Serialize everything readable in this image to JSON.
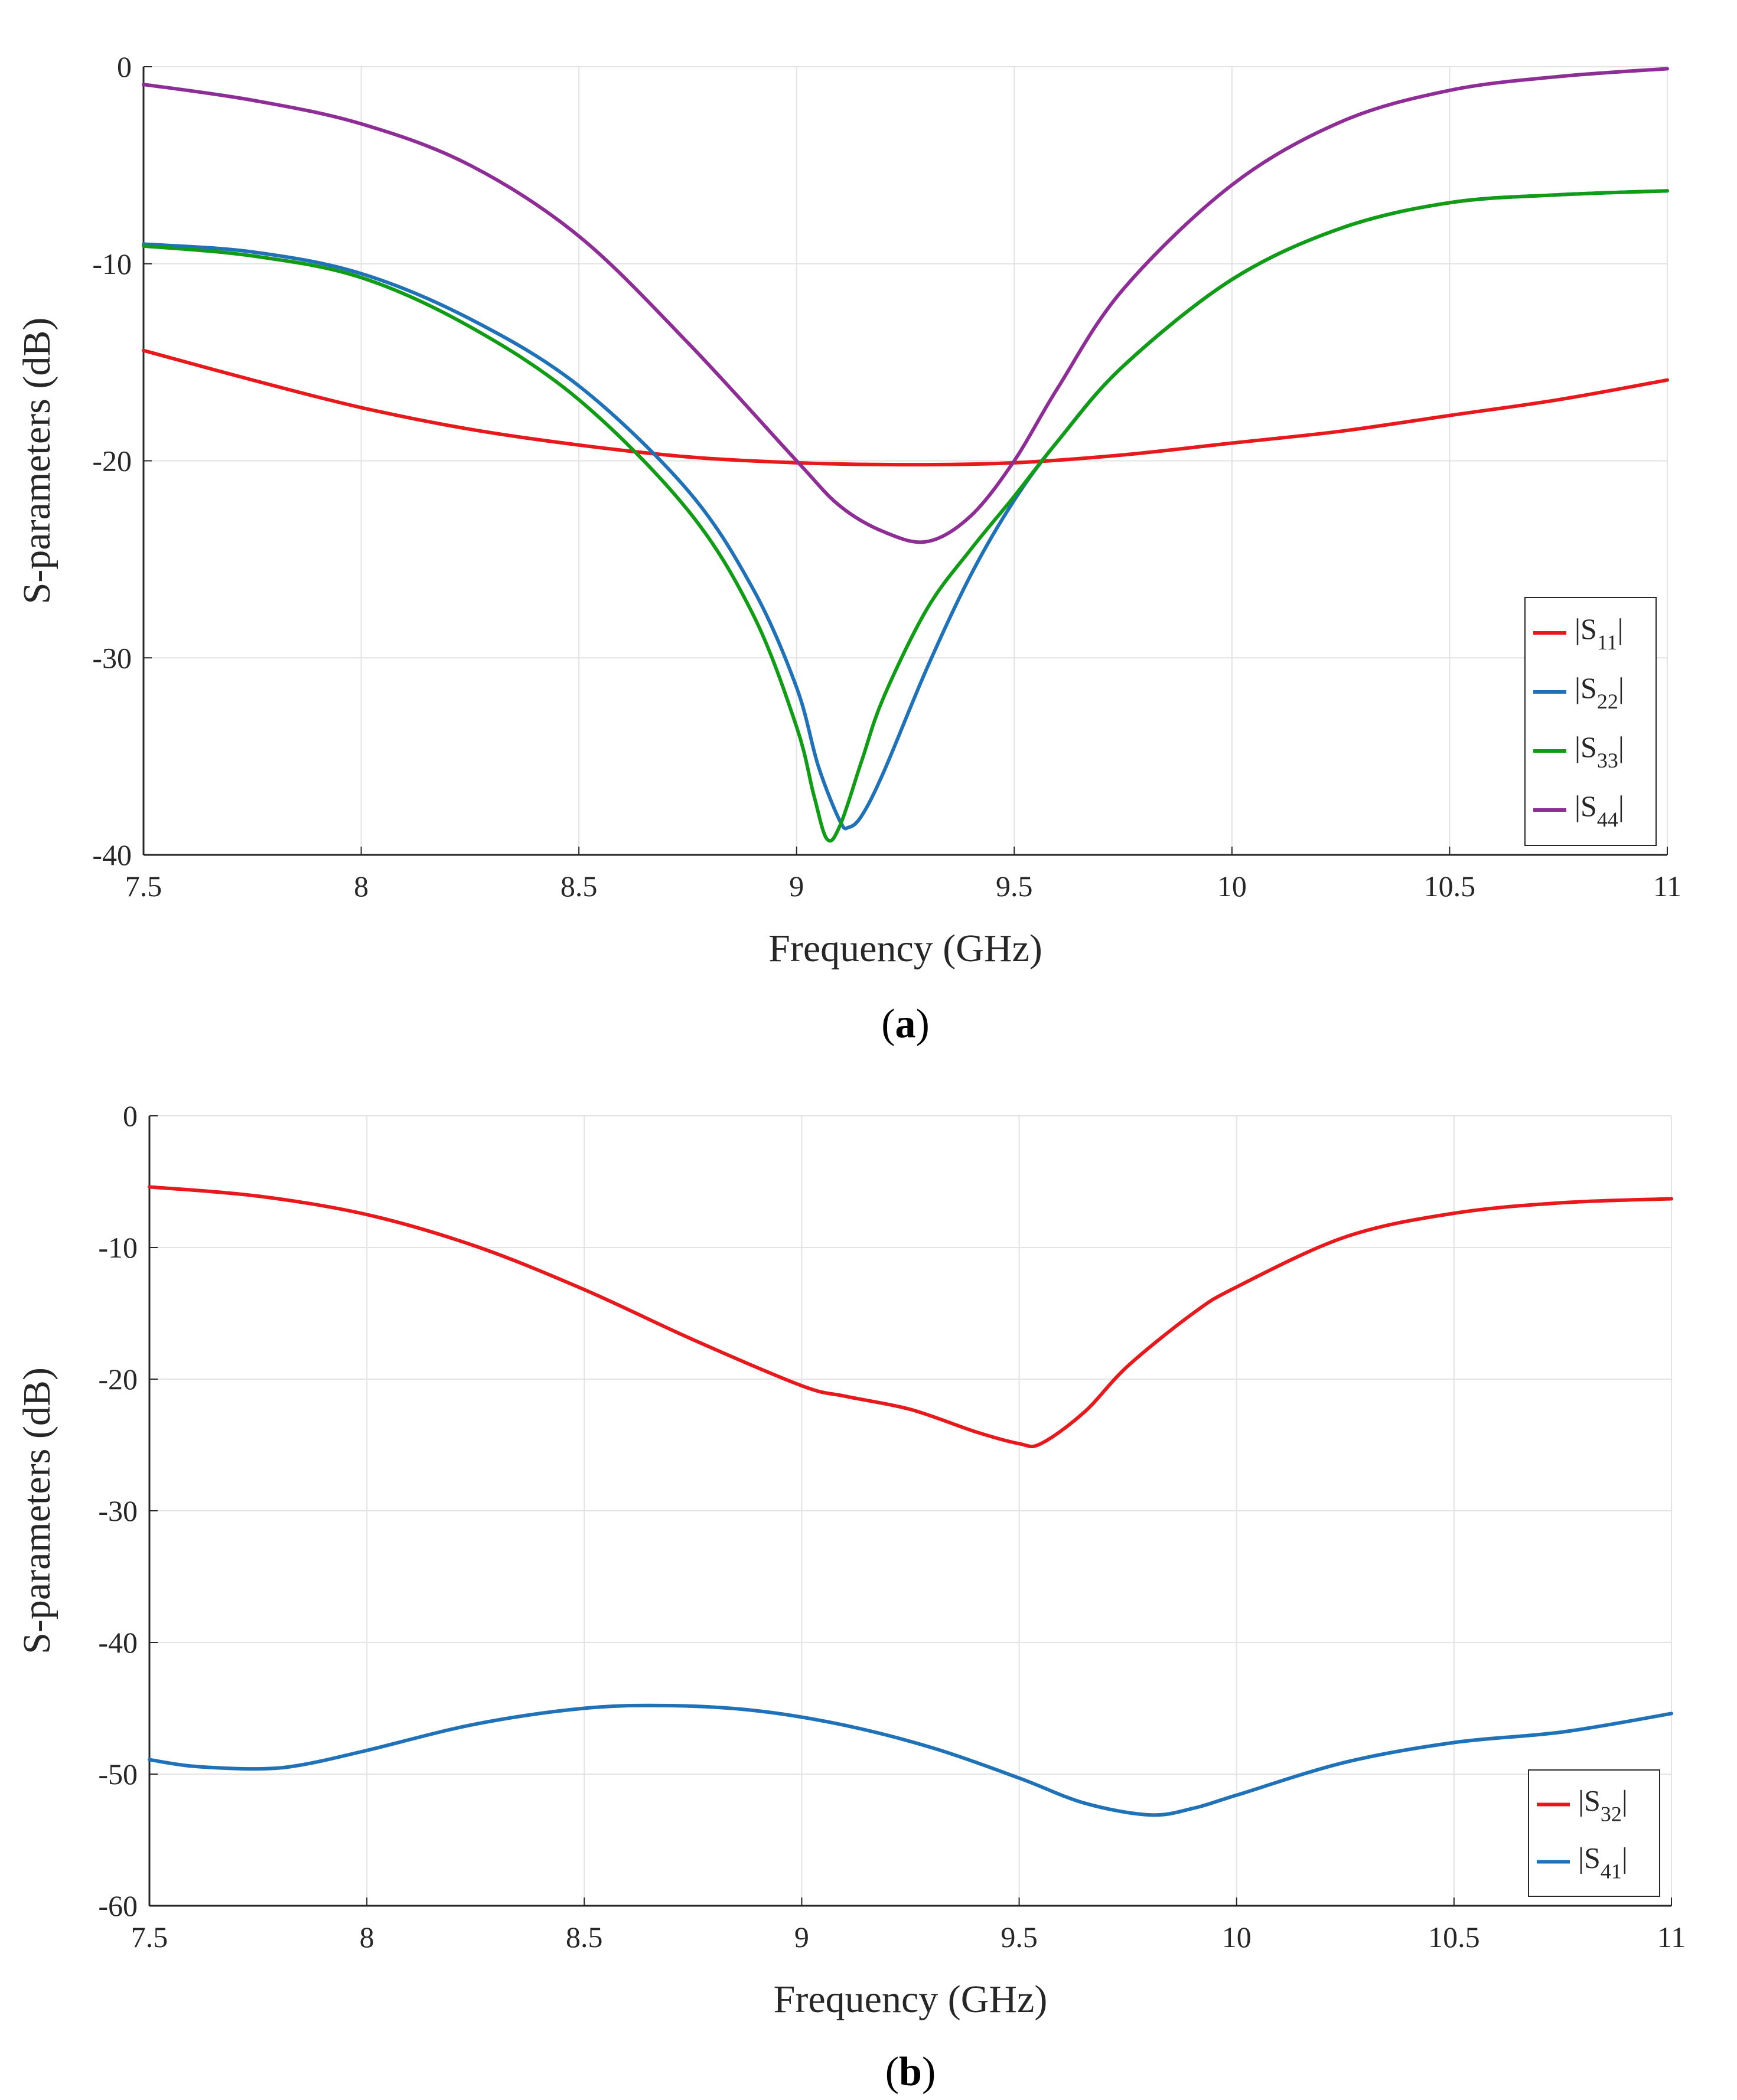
{
  "chart_data": [
    {
      "type": "line",
      "panel_label": "a",
      "title": "",
      "xlabel": "Frequency (GHz)",
      "ylabel": "S-parameters (dB)",
      "xlim": [
        7.5,
        11
      ],
      "ylim": [
        -40,
        0
      ],
      "xticks": [
        7.5,
        8,
        8.5,
        9,
        9.5,
        10,
        10.5,
        11
      ],
      "yticks": [
        0,
        -10,
        -20,
        -30,
        -40
      ],
      "xtick_labels": [
        "7.5",
        "8",
        "8.5",
        "9",
        "9.5",
        "10",
        "10.5",
        "11"
      ],
      "ytick_labels": [
        "0",
        "-10",
        "-20",
        "-30",
        "-40"
      ],
      "grid": true,
      "legend_position": "bottom-right",
      "series": [
        {
          "name": "|S11|",
          "base": "|S",
          "sub": "11",
          "close": "|",
          "color": "#e8191d",
          "x": [
            7.5,
            7.75,
            8.0,
            8.25,
            8.5,
            8.75,
            9.0,
            9.25,
            9.5,
            9.75,
            10.0,
            10.25,
            10.5,
            10.75,
            11.0
          ],
          "y": [
            -14.4,
            -15.9,
            -17.3,
            -18.4,
            -19.2,
            -19.8,
            -20.1,
            -20.2,
            -20.1,
            -19.7,
            -19.1,
            -18.5,
            -17.7,
            -16.9,
            -15.9
          ]
        },
        {
          "name": "|S22|",
          "base": "|S",
          "sub": "22",
          "close": "|",
          "color": "#1f72b8",
          "x": [
            7.5,
            7.75,
            8.0,
            8.25,
            8.5,
            8.75,
            8.9,
            9.0,
            9.05,
            9.1,
            9.12,
            9.15,
            9.2,
            9.3,
            9.4,
            9.5,
            9.6,
            9.75,
            10.0,
            10.25,
            10.5,
            10.75,
            11.0
          ],
          "y": [
            -9.0,
            -9.4,
            -10.5,
            -12.8,
            -16.2,
            -21.5,
            -26.5,
            -31.5,
            -35.5,
            -38.3,
            -38.6,
            -38.0,
            -35.8,
            -30.5,
            -25.8,
            -22.0,
            -19.0,
            -15.2,
            -10.8,
            -8.2,
            -6.9,
            -6.5,
            -6.3
          ]
        },
        {
          "name": "|S33|",
          "base": "|S",
          "sub": "33",
          "close": "|",
          "color": "#119c16",
          "x": [
            7.5,
            7.75,
            8.0,
            8.25,
            8.5,
            8.75,
            8.9,
            9.0,
            9.04,
            9.07,
            9.1,
            9.15,
            9.2,
            9.3,
            9.4,
            9.5,
            9.6,
            9.75,
            10.0,
            10.25,
            10.5,
            10.75,
            11.0
          ],
          "y": [
            -9.1,
            -9.6,
            -10.7,
            -13.2,
            -16.9,
            -22.5,
            -27.8,
            -33.5,
            -37.0,
            -39.2,
            -38.5,
            -35.2,
            -32.0,
            -27.5,
            -24.5,
            -21.8,
            -19.0,
            -15.2,
            -10.8,
            -8.2,
            -6.9,
            -6.5,
            -6.3
          ]
        },
        {
          "name": "|S44|",
          "base": "|S",
          "sub": "44",
          "close": "|",
          "color": "#8e2d96",
          "x": [
            7.5,
            7.75,
            8.0,
            8.25,
            8.5,
            8.75,
            9.0,
            9.1,
            9.2,
            9.3,
            9.4,
            9.5,
            9.6,
            9.75,
            10.0,
            10.25,
            10.5,
            10.75,
            11.0
          ],
          "y": [
            -0.9,
            -1.7,
            -2.9,
            -5.0,
            -8.6,
            -14.0,
            -20.0,
            -22.3,
            -23.6,
            -24.1,
            -22.8,
            -20.0,
            -16.3,
            -11.3,
            -6.0,
            -2.8,
            -1.2,
            -0.5,
            -0.1
          ]
        }
      ]
    },
    {
      "type": "line",
      "panel_label": "b",
      "title": "",
      "xlabel": "Frequency (GHz)",
      "ylabel": "S-parameters (dB)",
      "xlim": [
        7.5,
        11
      ],
      "ylim": [
        -60,
        0
      ],
      "xticks": [
        7.5,
        8,
        8.5,
        9,
        9.5,
        10,
        10.5,
        11
      ],
      "yticks": [
        0,
        -10,
        -20,
        -30,
        -40,
        -50,
        -60
      ],
      "xtick_labels": [
        "7.5",
        "8",
        "8.5",
        "9",
        "9.5",
        "10",
        "10.5",
        "11"
      ],
      "ytick_labels": [
        "0",
        "-10",
        "-20",
        "-30",
        "-40",
        "-50",
        "-60"
      ],
      "grid": true,
      "legend_position": "bottom-right",
      "series": [
        {
          "name": "|S32|",
          "base": "|S",
          "sub": "32",
          "close": "|",
          "color": "#e8191d",
          "x": [
            7.5,
            7.75,
            8.0,
            8.25,
            8.5,
            8.75,
            9.0,
            9.1,
            9.25,
            9.4,
            9.5,
            9.55,
            9.65,
            9.75,
            9.9,
            10.0,
            10.25,
            10.5,
            10.75,
            11.0
          ],
          "y": [
            -5.4,
            -6.1,
            -7.5,
            -9.9,
            -13.2,
            -17.0,
            -20.5,
            -21.3,
            -22.3,
            -24.0,
            -24.9,
            -24.9,
            -22.5,
            -19.0,
            -15.0,
            -13.0,
            -9.2,
            -7.4,
            -6.6,
            -6.3
          ]
        },
        {
          "name": "|S41|",
          "base": "|S",
          "sub": "41",
          "close": "|",
          "color": "#1f72b8",
          "x": [
            7.5,
            7.6,
            7.75,
            7.85,
            8.0,
            8.25,
            8.5,
            8.7,
            8.9,
            9.1,
            9.3,
            9.5,
            9.65,
            9.8,
            9.9,
            10.0,
            10.25,
            10.5,
            10.75,
            11.0
          ],
          "y": [
            -48.9,
            -49.4,
            -49.6,
            -49.3,
            -48.2,
            -46.2,
            -45.0,
            -44.8,
            -45.2,
            -46.3,
            -48.0,
            -50.3,
            -52.2,
            -53.1,
            -52.6,
            -51.6,
            -49.1,
            -47.6,
            -46.8,
            -45.4
          ]
        }
      ]
    }
  ]
}
